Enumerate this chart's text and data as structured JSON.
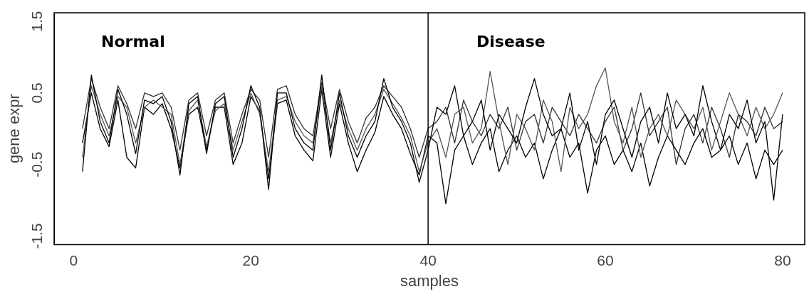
{
  "chart_data": {
    "type": "line",
    "xlabel": "samples",
    "ylabel": "gene expr",
    "x": [
      1,
      2,
      3,
      4,
      5,
      6,
      7,
      8,
      9,
      10,
      11,
      12,
      13,
      14,
      15,
      16,
      17,
      18,
      19,
      20,
      21,
      22,
      23,
      24,
      25,
      26,
      27,
      28,
      29,
      30,
      31,
      32,
      33,
      34,
      35,
      36,
      37,
      38,
      39,
      40,
      41,
      42,
      43,
      44,
      45,
      46,
      47,
      48,
      49,
      50,
      51,
      52,
      53,
      54,
      55,
      56,
      57,
      58,
      59,
      60,
      61,
      62,
      63,
      64,
      65,
      66,
      67,
      68,
      69,
      70,
      71,
      72,
      73,
      74,
      75,
      76,
      77,
      78,
      79,
      80
    ],
    "xlim": [
      -2.2,
      82.5
    ],
    "xticks": [
      0,
      20,
      40,
      60,
      80
    ],
    "ylim": [
      -1.62,
      1.62
    ],
    "yticks": [
      -1.5,
      -0.5,
      0.5,
      1.5
    ],
    "grid": false,
    "legend": false,
    "marker": "none",
    "line_style": "solid",
    "series": [
      {
        "color": "#000000",
        "values": [
          -0.6,
          0.75,
          0.1,
          -0.2,
          0.55,
          0.2,
          -0.35,
          0.4,
          0.35,
          0.45,
          0.1,
          -0.65,
          0.35,
          0.45,
          -0.35,
          0.35,
          0.45,
          -0.4,
          0.0,
          0.6,
          0.3,
          -0.85,
          0.5,
          0.5,
          0.0,
          -0.2,
          -0.3,
          0.75,
          -0.3,
          0.5,
          -0.1,
          -0.4,
          -0.1,
          0.1,
          0.7,
          0.3,
          0.1,
          -0.2,
          -0.75,
          -0.3,
          0.3,
          0.2,
          0.6,
          -0.1,
          0.1,
          0.4,
          -0.3,
          0.2,
          0.0,
          -0.2,
          0.3,
          0.7,
          0.2,
          -0.1,
          0.0,
          0.5,
          -0.3,
          0.1,
          -0.5,
          0.2,
          0.4,
          0.0,
          -0.4,
          0.1,
          0.3,
          -0.2,
          0.5,
          0.0,
          0.2,
          -0.1,
          0.6,
          0.1,
          -0.3,
          0.2,
          0.0,
          0.4,
          -0.2,
          0.1,
          -1.0,
          0.2
        ]
      },
      {
        "color": "#555555",
        "values": [
          -0.4,
          0.6,
          0.2,
          -0.1,
          0.45,
          0.3,
          -0.2,
          0.3,
          0.4,
          0.3,
          0.2,
          -0.5,
          0.25,
          0.4,
          -0.25,
          0.25,
          0.35,
          -0.3,
          0.1,
          0.5,
          0.2,
          -0.6,
          0.4,
          0.45,
          0.1,
          -0.1,
          -0.2,
          0.6,
          -0.2,
          0.4,
          0.0,
          -0.3,
          0.0,
          0.2,
          0.55,
          0.35,
          0.15,
          -0.1,
          -0.6,
          -0.2,
          0.0,
          -0.4,
          0.2,
          0.3,
          -0.2,
          0.0,
          0.8,
          0.1,
          -0.5,
          0.2,
          0.0,
          -0.3,
          0.4,
          0.1,
          -0.6,
          0.3,
          0.0,
          0.2,
          0.6,
          0.85,
          0.1,
          -0.2,
          0.3,
          -0.4,
          0.0,
          0.2,
          -0.1,
          0.4,
          0.2,
          0.0,
          0.3,
          -0.3,
          0.1,
          0.5,
          0.2,
          -0.1,
          0.3,
          0.0,
          0.2,
          0.5
        ]
      },
      {
        "color": "#000000",
        "values": [
          -0.2,
          0.5,
          0.0,
          -0.25,
          0.4,
          -0.4,
          -0.55,
          0.3,
          0.2,
          0.35,
          0.0,
          -0.55,
          0.2,
          0.3,
          -0.3,
          0.3,
          0.3,
          -0.5,
          -0.2,
          0.45,
          0.25,
          -0.7,
          0.35,
          0.4,
          -0.1,
          -0.3,
          -0.45,
          0.55,
          -0.4,
          0.35,
          -0.2,
          -0.6,
          -0.3,
          -0.05,
          0.45,
          0.2,
          0.0,
          -0.35,
          -0.65,
          -0.1,
          -0.2,
          -1.05,
          -0.3,
          -0.1,
          -0.5,
          -0.2,
          0.0,
          -0.6,
          -0.3,
          -0.1,
          -0.4,
          -0.2,
          -0.7,
          -0.3,
          0.0,
          -0.4,
          -0.2,
          -0.9,
          -0.3,
          -0.1,
          -0.5,
          -0.3,
          -0.6,
          -0.2,
          -0.8,
          -0.4,
          -0.1,
          -0.3,
          -0.5,
          -0.2,
          0.0,
          -0.4,
          -0.3,
          -0.1,
          -0.5,
          -0.2,
          -0.7,
          -0.3,
          -0.5,
          -0.3
        ]
      },
      {
        "color": "#333333",
        "values": [
          0.0,
          0.7,
          0.3,
          0.0,
          0.6,
          0.35,
          0.0,
          0.5,
          0.45,
          0.5,
          0.3,
          -0.3,
          0.4,
          0.5,
          -0.1,
          0.4,
          0.5,
          -0.2,
          0.2,
          0.55,
          0.4,
          -0.4,
          0.55,
          0.6,
          0.2,
          0.0,
          -0.1,
          0.65,
          0.0,
          0.55,
          0.1,
          -0.2,
          0.15,
          0.3,
          0.6,
          0.45,
          0.3,
          0.0,
          -0.4,
          0.0,
          0.1,
          0.3,
          -0.2,
          0.4,
          0.1,
          -0.1,
          0.2,
          0.0,
          0.3,
          -0.3,
          0.1,
          0.2,
          -0.2,
          0.3,
          0.1,
          -0.1,
          0.2,
          0.0,
          -0.2,
          0.1,
          0.3,
          -0.3,
          0.0,
          0.5,
          -0.1,
          0.1,
          0.3,
          -0.5,
          0.0,
          0.2,
          -0.2,
          0.3,
          0.0,
          -0.4,
          0.2,
          0.1,
          -0.1,
          0.3,
          0.0,
          0.1
        ]
      }
    ],
    "ref_lines": [
      {
        "axis": "x",
        "value": 40,
        "color": "#000000"
      }
    ],
    "annotations": [
      "Normal",
      "Disease"
    ]
  }
}
